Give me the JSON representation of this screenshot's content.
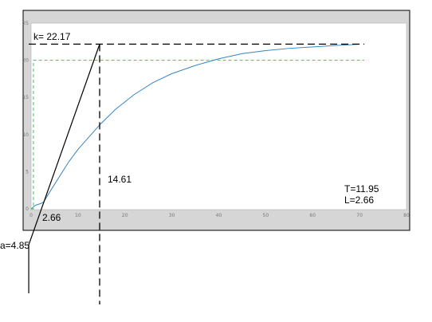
{
  "chart_data": {
    "type": "line",
    "title": "",
    "xlabel": "",
    "ylabel": "",
    "xlim": [
      0,
      80
    ],
    "ylim": [
      0,
      25
    ],
    "x_ticks": [
      0,
      10,
      20,
      30,
      40,
      50,
      60,
      70,
      80
    ],
    "y_ticks": [
      0,
      5,
      10,
      15,
      20,
      25
    ],
    "x_tick_labels": [
      "0",
      "10",
      "20",
      "30",
      "40",
      "50",
      "60",
      "70",
      "80"
    ],
    "y_tick_labels": [
      "0",
      "5",
      "10",
      "15",
      "20",
      "25"
    ],
    "grid": false,
    "series": [
      {
        "kind": "step-input",
        "color": "#33cc55",
        "style": "dashed",
        "x": [
          0,
          0.5,
          0.5,
          71
        ],
        "y": [
          0,
          0,
          20,
          20
        ]
      },
      {
        "kind": "response",
        "color": "#3a85c0",
        "style": "solid",
        "x": [
          0,
          1,
          2,
          2.66,
          4,
          6,
          8,
          10,
          14.61,
          18,
          22,
          26,
          30,
          35,
          40,
          45,
          50,
          55,
          60,
          65,
          70
        ],
        "y": [
          0,
          0.5,
          0.7,
          0.9,
          2.3,
          4.3,
          6.3,
          8.0,
          11.3,
          13.4,
          15.4,
          17.0,
          18.2,
          19.3,
          20.2,
          20.9,
          21.3,
          21.6,
          21.8,
          22.0,
          22.15
        ]
      }
    ],
    "tangent": {
      "x": [
        -0.5,
        14.61
      ],
      "y": [
        -4.85,
        22.17
      ]
    },
    "reference_lines": {
      "k_level": 22.17,
      "t_marker": 14.61
    },
    "annotations": {
      "k": "k= 22.17",
      "t_marker": "14.61",
      "l_point": "2.66",
      "a_point": "a=4.85",
      "T": "T=11.95",
      "L": "L=2.66"
    },
    "colors": {
      "frame": "#000000",
      "figure_bg": "#d6d6d6",
      "axes_bg": "#ffffff",
      "tick_text": "#777777"
    }
  }
}
